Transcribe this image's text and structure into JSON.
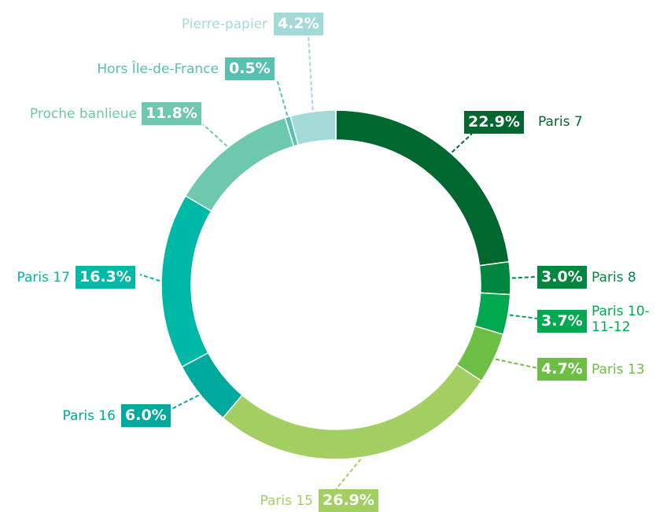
{
  "chart_data": {
    "type": "donut",
    "categories": [
      "Paris 7",
      "Paris 8",
      "Paris 10-11-12",
      "Paris 13",
      "Paris 15",
      "Paris 16",
      "Paris 17",
      "Proche banlieue",
      "Hors Île-de-France",
      "Pierre-papier"
    ],
    "values": [
      22.9,
      3.0,
      3.7,
      4.7,
      26.9,
      6.0,
      16.3,
      11.8,
      0.5,
      4.2
    ],
    "value_labels": [
      "22.9%",
      "3.0%",
      "3.7%",
      "4.7%",
      "26.9%",
      "6.0%",
      "16.3%",
      "11.8%",
      "0.5%",
      "4.2%"
    ],
    "colors": [
      "#00672f",
      "#00873f",
      "#00a94f",
      "#6dbe45",
      "#a3cf62",
      "#00a99d",
      "#00b8a6",
      "#6ec8ad",
      "#57c0b0",
      "#a3dad8"
    ]
  }
}
